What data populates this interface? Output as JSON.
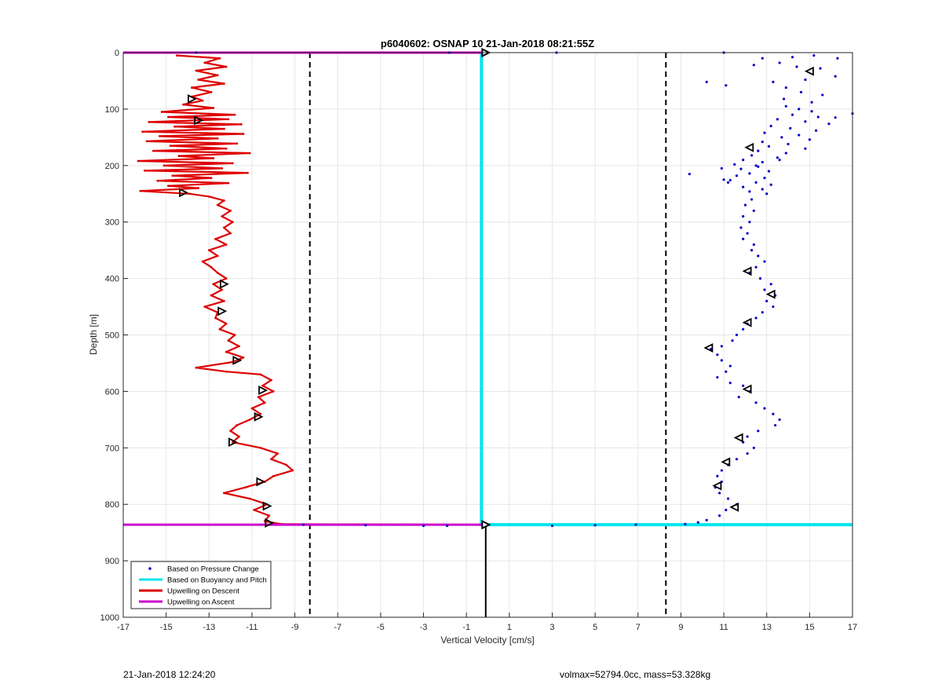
{
  "chart_data": {
    "type": "line",
    "title": "p6040602: OSNAP 10 21-Jan-2018 08:21:55Z",
    "xlabel": "Vertical Velocity [cm/s]",
    "ylabel": "Depth [m]",
    "xlim": [
      -17,
      17
    ],
    "ylim": [
      0,
      1000
    ],
    "y_reversed": true,
    "grid": true,
    "x_ticks": [
      -17,
      -15,
      -13,
      -11,
      -9,
      -7,
      -5,
      -3,
      -1,
      1,
      3,
      5,
      7,
      9,
      11,
      13,
      15,
      17
    ],
    "y_ticks": [
      0,
      100,
      200,
      300,
      400,
      500,
      600,
      700,
      800,
      900,
      1000
    ],
    "legend_location": "bottom-left",
    "legend": [
      {
        "label": "Based on Pressure Change",
        "color": "#0000cc",
        "style": "dot"
      },
      {
        "label": "Based on Buoyancy and Pitch",
        "color": "#00e5ee",
        "style": "line"
      },
      {
        "label": "Upwelling on Descent",
        "color": "#dd0000",
        "style": "line"
      },
      {
        "label": "Upwelling on Ascent",
        "color": "#cc00cc",
        "style": "line"
      }
    ],
    "reference_lines": {
      "dashed_x": [
        -8.3,
        8.3
      ],
      "solid_zero_segment_depth": [
        835,
        1000
      ],
      "dive_end_depth": 836,
      "color": "#000000"
    },
    "series": [
      {
        "name": "Upwelling on Descent",
        "color": "#dd0000",
        "points": [
          [
            -14.5,
            5
          ],
          [
            -12.5,
            10
          ],
          [
            -13.2,
            18
          ],
          [
            -12.2,
            25
          ],
          [
            -13.6,
            32
          ],
          [
            -12.6,
            40
          ],
          [
            -13.5,
            48
          ],
          [
            -12.3,
            55
          ],
          [
            -13.8,
            62
          ],
          [
            -12.9,
            70
          ],
          [
            -13.8,
            78
          ],
          [
            -13.3,
            85
          ],
          [
            -14.2,
            92
          ],
          [
            -12.8,
            98
          ],
          [
            -15.2,
            105
          ],
          [
            -11.8,
            110
          ],
          [
            -14.9,
            114
          ],
          [
            -12.1,
            118
          ],
          [
            -15.8,
            123
          ],
          [
            -11.5,
            127
          ],
          [
            -14.6,
            131
          ],
          [
            -12.3,
            135
          ],
          [
            -16.1,
            140
          ],
          [
            -11.4,
            144
          ],
          [
            -15.3,
            148
          ],
          [
            -12.6,
            152
          ],
          [
            -15.9,
            157
          ],
          [
            -11.7,
            161
          ],
          [
            -14.8,
            165
          ],
          [
            -12.2,
            170
          ],
          [
            -15.6,
            174
          ],
          [
            -11.1,
            178
          ],
          [
            -14.4,
            183
          ],
          [
            -12.8,
            187
          ],
          [
            -16.3,
            192
          ],
          [
            -11.9,
            196
          ],
          [
            -15.1,
            200
          ],
          [
            -12.4,
            205
          ],
          [
            -16.0,
            209
          ],
          [
            -11.2,
            213
          ],
          [
            -14.7,
            218
          ],
          [
            -12.9,
            222
          ],
          [
            -15.4,
            227
          ],
          [
            -12.1,
            231
          ],
          [
            -14.9,
            236
          ],
          [
            -13.5,
            240
          ],
          [
            -16.2,
            245
          ],
          [
            -13.9,
            250
          ],
          [
            -13.0,
            255
          ],
          [
            -12.3,
            262
          ],
          [
            -12.6,
            270
          ],
          [
            -12.0,
            280
          ],
          [
            -12.4,
            290
          ],
          [
            -11.9,
            300
          ],
          [
            -12.3,
            310
          ],
          [
            -12.0,
            320
          ],
          [
            -12.7,
            330
          ],
          [
            -12.2,
            340
          ],
          [
            -13.0,
            350
          ],
          [
            -12.6,
            360
          ],
          [
            -13.3,
            370
          ],
          [
            -12.9,
            380
          ],
          [
            -12.6,
            390
          ],
          [
            -12.2,
            400
          ],
          [
            -12.8,
            410
          ],
          [
            -12.4,
            420
          ],
          [
            -12.9,
            430
          ],
          [
            -12.3,
            440
          ],
          [
            -13.2,
            450
          ],
          [
            -12.6,
            460
          ],
          [
            -12.7,
            470
          ],
          [
            -12.2,
            480
          ],
          [
            -12.5,
            490
          ],
          [
            -11.8,
            500
          ],
          [
            -12.1,
            510
          ],
          [
            -11.6,
            520
          ],
          [
            -12.2,
            530
          ],
          [
            -11.4,
            540
          ],
          [
            -11.9,
            548
          ],
          [
            -13.6,
            558
          ],
          [
            -12.2,
            565
          ],
          [
            -10.6,
            570
          ],
          [
            -10.1,
            580
          ],
          [
            -10.5,
            590
          ],
          [
            -10.0,
            600
          ],
          [
            -10.7,
            610
          ],
          [
            -10.4,
            620
          ],
          [
            -11.0,
            630
          ],
          [
            -10.6,
            640
          ],
          [
            -11.1,
            650
          ],
          [
            -11.7,
            660
          ],
          [
            -12.0,
            670
          ],
          [
            -11.6,
            680
          ],
          [
            -11.9,
            690
          ],
          [
            -10.6,
            700
          ],
          [
            -9.8,
            710
          ],
          [
            -10.1,
            720
          ],
          [
            -9.4,
            730
          ],
          [
            -9.1,
            740
          ],
          [
            -10.0,
            750
          ],
          [
            -10.4,
            760
          ],
          [
            -11.3,
            770
          ],
          [
            -12.3,
            780
          ],
          [
            -11.1,
            790
          ],
          [
            -10.3,
            800
          ],
          [
            -10.9,
            810
          ],
          [
            -10.2,
            820
          ],
          [
            -10.4,
            830
          ],
          [
            -9.6,
            835
          ],
          [
            -1.0,
            836
          ],
          [
            -0.3,
            836
          ]
        ]
      },
      {
        "name": "Upwelling on Ascent",
        "color": "#cc00cc",
        "points": [
          [
            -17,
            836
          ],
          [
            -0.3,
            836
          ],
          [
            -17,
            0
          ],
          [
            -0.3,
            0
          ]
        ]
      },
      {
        "name": "Based on Buoyancy and Pitch",
        "color": "#00e5ee",
        "points": [
          [
            -0.3,
            0
          ],
          [
            -0.3,
            836
          ],
          [
            17,
            836
          ]
        ]
      },
      {
        "name": "Based on Pressure Change",
        "color": "#0000cc",
        "type": "scatter",
        "points": [
          [
            -13.6,
            0
          ],
          [
            -1.8,
            0
          ],
          [
            3.2,
            0
          ],
          [
            11.0,
            0
          ],
          [
            12.8,
            10
          ],
          [
            14.2,
            8
          ],
          [
            15.2,
            5
          ],
          [
            16.3,
            10
          ],
          [
            13.6,
            18
          ],
          [
            14.4,
            25
          ],
          [
            12.4,
            22
          ],
          [
            15.5,
            28
          ],
          [
            16.2,
            42
          ],
          [
            14.8,
            48
          ],
          [
            13.3,
            52
          ],
          [
            10.2,
            52
          ],
          [
            11.1,
            58
          ],
          [
            13.9,
            62
          ],
          [
            14.6,
            70
          ],
          [
            15.6,
            75
          ],
          [
            13.8,
            82
          ],
          [
            15.1,
            88
          ],
          [
            17.0,
            108
          ],
          [
            16.2,
            115
          ],
          [
            13.9,
            95
          ],
          [
            14.5,
            100
          ],
          [
            15.1,
            104
          ],
          [
            14.2,
            110
          ],
          [
            15.4,
            114
          ],
          [
            13.5,
            118
          ],
          [
            14.8,
            122
          ],
          [
            15.9,
            126
          ],
          [
            13.2,
            130
          ],
          [
            14.1,
            134
          ],
          [
            15.3,
            138
          ],
          [
            12.9,
            142
          ],
          [
            14.5,
            146
          ],
          [
            13.7,
            150
          ],
          [
            15.0,
            154
          ],
          [
            12.8,
            158
          ],
          [
            14.0,
            162
          ],
          [
            13.1,
            166
          ],
          [
            14.8,
            170
          ],
          [
            12.6,
            174
          ],
          [
            13.9,
            178
          ],
          [
            12.3,
            182
          ],
          [
            13.5,
            186
          ],
          [
            11.9,
            190
          ],
          [
            12.8,
            194
          ],
          [
            11.5,
            198
          ],
          [
            12.6,
            202
          ],
          [
            11.8,
            206
          ],
          [
            13.1,
            210
          ],
          [
            12.2,
            214
          ],
          [
            11.6,
            218
          ],
          [
            12.9,
            222
          ],
          [
            11.3,
            226
          ],
          [
            12.5,
            230
          ],
          [
            13.2,
            234
          ],
          [
            11.9,
            238
          ],
          [
            12.8,
            242
          ],
          [
            12.2,
            246
          ],
          [
            13.0,
            250
          ],
          [
            9.4,
            215
          ],
          [
            10.9,
            205
          ],
          [
            11.2,
            230
          ],
          [
            12.5,
            200
          ],
          [
            13.6,
            190
          ],
          [
            11.0,
            225
          ],
          [
            12.3,
            260
          ],
          [
            12.0,
            270
          ],
          [
            12.4,
            280
          ],
          [
            11.9,
            290
          ],
          [
            12.2,
            300
          ],
          [
            11.8,
            310
          ],
          [
            12.1,
            320
          ],
          [
            11.9,
            330
          ],
          [
            12.4,
            340
          ],
          [
            12.3,
            350
          ],
          [
            12.6,
            360
          ],
          [
            12.9,
            370
          ],
          [
            12.5,
            380
          ],
          [
            12.2,
            390
          ],
          [
            12.7,
            400
          ],
          [
            13.2,
            410
          ],
          [
            12.9,
            420
          ],
          [
            13.4,
            430
          ],
          [
            13.0,
            440
          ],
          [
            13.3,
            450
          ],
          [
            12.8,
            460
          ],
          [
            12.5,
            470
          ],
          [
            12.1,
            480
          ],
          [
            11.9,
            490
          ],
          [
            11.6,
            500
          ],
          [
            11.4,
            510
          ],
          [
            10.9,
            520
          ],
          [
            10.4,
            525
          ],
          [
            10.7,
            535
          ],
          [
            10.9,
            545
          ],
          [
            11.3,
            555
          ],
          [
            11.1,
            565
          ],
          [
            10.7,
            575
          ],
          [
            11.3,
            585
          ],
          [
            11.9,
            590
          ],
          [
            12.2,
            600
          ],
          [
            11.7,
            610
          ],
          [
            12.5,
            620
          ],
          [
            12.9,
            630
          ],
          [
            13.3,
            640
          ],
          [
            13.6,
            650
          ],
          [
            13.4,
            660
          ],
          [
            12.6,
            670
          ],
          [
            12.1,
            680
          ],
          [
            11.9,
            690
          ],
          [
            12.4,
            700
          ],
          [
            12.1,
            710
          ],
          [
            11.6,
            720
          ],
          [
            11.2,
            730
          ],
          [
            10.9,
            740
          ],
          [
            10.7,
            750
          ],
          [
            10.9,
            760
          ],
          [
            10.6,
            770
          ],
          [
            10.8,
            780
          ],
          [
            11.2,
            790
          ],
          [
            11.6,
            800
          ],
          [
            11.1,
            810
          ],
          [
            10.8,
            820
          ],
          [
            10.2,
            828
          ],
          [
            9.8,
            832
          ],
          [
            9.2,
            835
          ],
          [
            6.9,
            836
          ],
          [
            5.0,
            837
          ],
          [
            3.0,
            838
          ],
          [
            -1.9,
            838
          ],
          [
            -3.0,
            838
          ],
          [
            -5.7,
            837
          ],
          [
            -8.6,
            836
          ]
        ]
      }
    ],
    "markers": {
      "color": "#000000",
      "descent_triangles": [
        [
          -13.8,
          82
        ],
        [
          -13.5,
          120
        ],
        [
          -14.2,
          248
        ],
        [
          -12.3,
          410
        ],
        [
          -12.4,
          458
        ],
        [
          -11.7,
          545
        ],
        [
          -10.5,
          598
        ],
        [
          -10.7,
          645
        ],
        [
          -11.9,
          690
        ],
        [
          -10.6,
          760
        ],
        [
          -10.3,
          803
        ],
        [
          -10.2,
          833
        ]
      ],
      "ascent_triangles": [
        [
          15.0,
          33
        ],
        [
          12.2,
          168
        ],
        [
          12.1,
          387
        ],
        [
          13.2,
          428
        ],
        [
          12.1,
          478
        ],
        [
          10.3,
          523
        ],
        [
          12.1,
          596
        ],
        [
          11.7,
          682
        ],
        [
          11.1,
          725
        ],
        [
          10.7,
          767
        ],
        [
          11.5,
          805
        ]
      ],
      "surface_markers": [
        [
          -0.1,
          0
        ],
        [
          -0.1,
          836
        ]
      ]
    }
  },
  "footer": {
    "left": "21-Jan-2018 12:24:20",
    "right": "volmax=52794.0cc, mass=53.328kg"
  }
}
